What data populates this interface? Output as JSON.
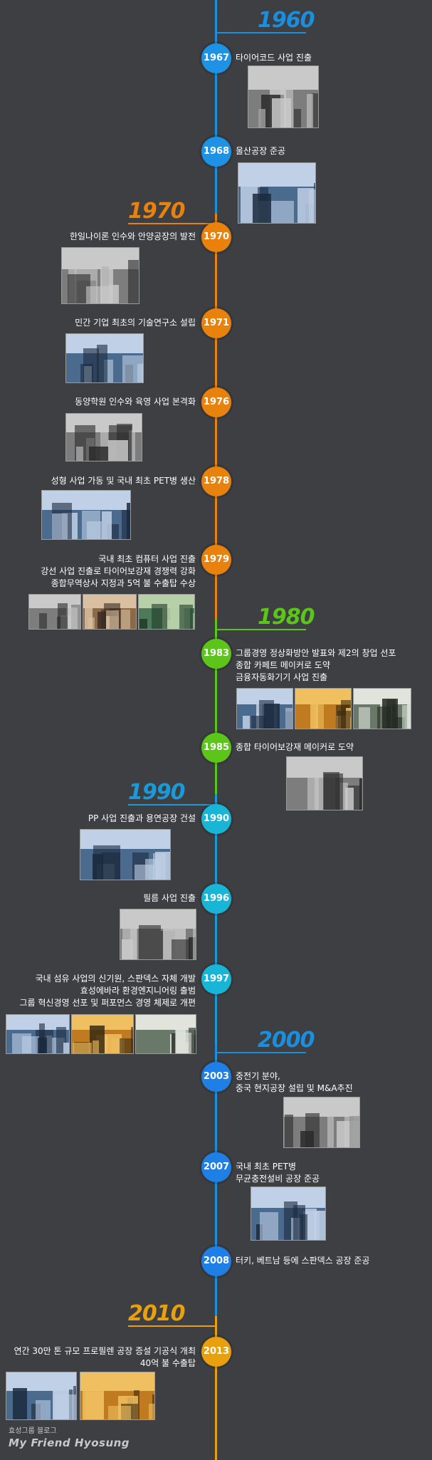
{
  "decades": [
    {
      "label": "1960",
      "color": "#1a8fe0"
    },
    {
      "label": "1970",
      "color": "#e8820c"
    },
    {
      "label": "1980",
      "color": "#5cc51a"
    },
    {
      "label": "1990",
      "color": "#1a9ad8"
    },
    {
      "label": "2000",
      "color": "#1a8fe0"
    },
    {
      "label": "2010",
      "color": "#e8a00c"
    }
  ],
  "events": [
    {
      "year": "1967",
      "color": "#1e93e6",
      "lines": [
        "타이어코드 사업 진출"
      ]
    },
    {
      "year": "1968",
      "color": "#1e93e6",
      "lines": [
        "울산공장 준공"
      ]
    },
    {
      "year": "1970",
      "color": "#e8820c",
      "lines": [
        "한일나이론 인수와 안양공장의 발전"
      ]
    },
    {
      "year": "1971",
      "color": "#e8820c",
      "lines": [
        "민간 기업 최초의 기술연구소 설립"
      ]
    },
    {
      "year": "1976",
      "color": "#e8820c",
      "lines": [
        "동양학원 인수와 육영 사업 본격화"
      ]
    },
    {
      "year": "1978",
      "color": "#e8820c",
      "lines": [
        "성형 사업 가동 및 국내 최초 PET병 생산"
      ]
    },
    {
      "year": "1979",
      "color": "#e8820c",
      "lines": [
        "국내 최초 컴퓨터 사업 진출",
        "강선 사업 진출로 타이어보강재 경쟁력 강화",
        "종합무역상사 지정과 5억 불 수출탑 수상"
      ]
    },
    {
      "year": "1983",
      "color": "#5cc51a",
      "lines": [
        "그룹경영 정상화방안 발표와 제2의 창업 선포",
        "종합 카페트 메이커로 도약",
        "금융자동화기기 사업 진출"
      ]
    },
    {
      "year": "1985",
      "color": "#5cc51a",
      "lines": [
        "종합 타이어보강재 메이커로 도약"
      ]
    },
    {
      "year": "1990",
      "color": "#19b5d6",
      "lines": [
        "PP 사업 진출과 용연공장 건설"
      ]
    },
    {
      "year": "1996",
      "color": "#19b5d6",
      "lines": [
        "필름 사업 진출"
      ]
    },
    {
      "year": "1997",
      "color": "#19b5d6",
      "lines": [
        "국내 섬유 사업의 신기원, 스판덱스 자체 개발",
        "효성에바라 환경엔지니어링 출범",
        "그룹 혁신경영 선포 및 퍼포먼스 경영 체제로 개편"
      ]
    },
    {
      "year": "2003",
      "color": "#1e7fe6",
      "lines": [
        "중전기 분야,",
        "중국 현지공장 설립 및 M&A추진"
      ]
    },
    {
      "year": "2007",
      "color": "#1e7fe6",
      "lines": [
        "국내 최초 PET병",
        "무균충전설비 공장 준공"
      ]
    },
    {
      "year": "2008",
      "color": "#1e7fe6",
      "lines": [
        "터키, 베트남 등에 스판덱스 공장 준공"
      ]
    },
    {
      "year": "2013",
      "color": "#e8a00c",
      "lines": [
        "연간 30만 톤 규모 프로필렌 공장 증설 기공식 개최",
        "40억 불 수출탑"
      ]
    }
  ],
  "brand": {
    "line1": "효성그룹 블로그",
    "line2": "My Friend Hyosung"
  }
}
